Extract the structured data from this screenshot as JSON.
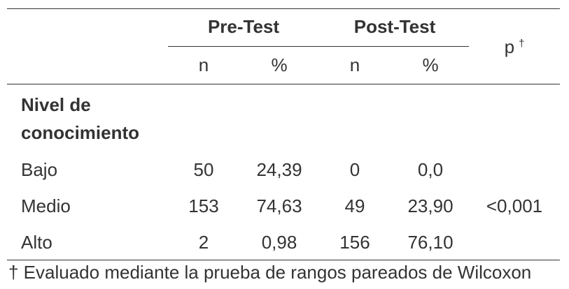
{
  "table": {
    "groups": [
      "Pre-Test",
      "Post-Test"
    ],
    "p_label": "p",
    "p_mark": "†",
    "subheaders": [
      "n",
      "%",
      "n",
      "%"
    ],
    "section": "Nivel de conocimiento",
    "rows": [
      [
        "Bajo",
        "50",
        "24,39",
        "0",
        "0,0"
      ],
      [
        "Medio",
        "153",
        "74,63",
        "49",
        "23,90"
      ],
      [
        "Alto",
        "2",
        "0,98",
        "156",
        "76,10"
      ]
    ],
    "p_value": "<0,001"
  },
  "footnote": "† Evaluado mediante la prueba de rangos pareados de Wilcoxon"
}
